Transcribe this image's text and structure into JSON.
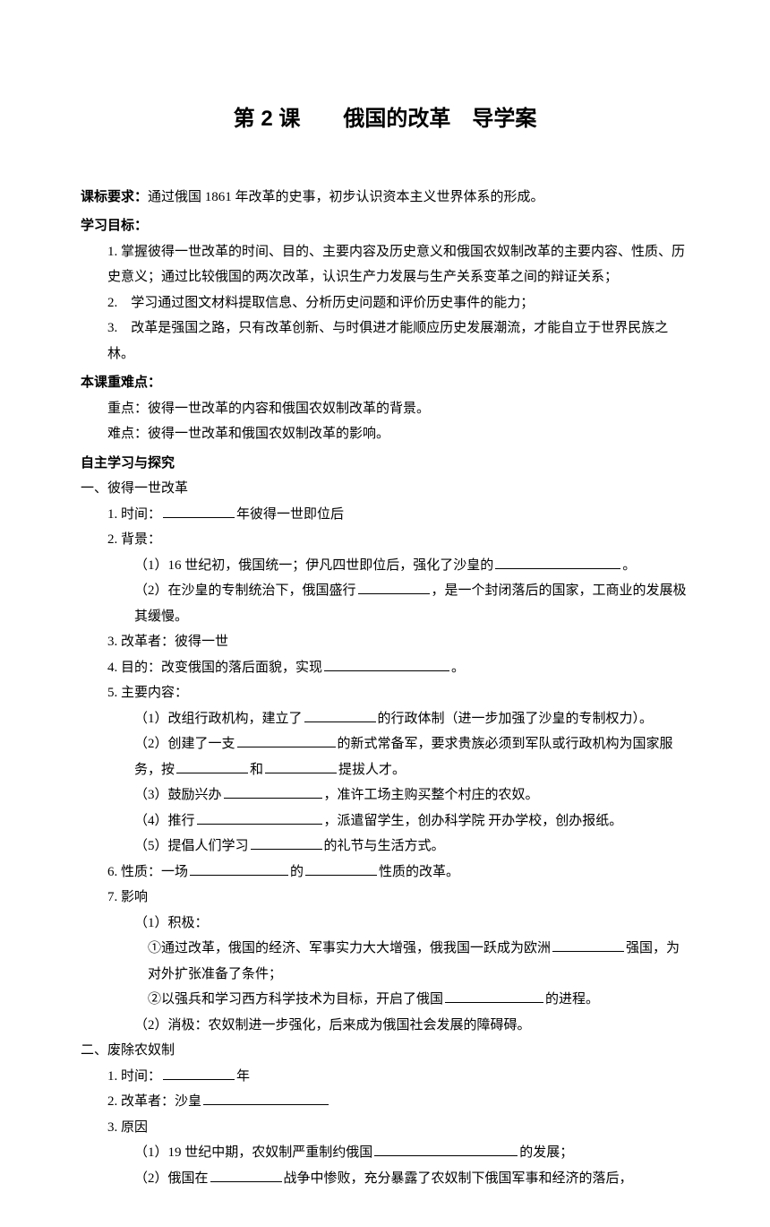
{
  "title": "第 2 课　　俄国的改革　导学案",
  "requirement": {
    "label": "课标要求：",
    "text": "通过俄国 1861 年改革的史事，初步认识资本主义世界体系的形成。"
  },
  "objectives": {
    "label": "学习目标：",
    "items": [
      "1.  掌握彼得一世改革的时间、目的、主要内容及历史意义和俄国农奴制改革的主要内容、性质、历史意义；通过比较俄国的两次改革，认识生产力发展与生产关系变革之间的辩证关系；",
      "2.　学习通过图文材料提取信息、分析历史问题和评价历史事件的能力；",
      "3.　改革是强国之路，只有改革创新、与时俱进才能顺应历史发展潮流，才能自立于世界民族之林。"
    ]
  },
  "keypoints": {
    "label": "本课重难点：",
    "zhong": "重点：彼得一世改革的内容和俄国农奴制改革的背景。",
    "nan": "难点：彼得一世改革和俄国农奴制改革的影响。"
  },
  "study": {
    "label": "自主学习与探究"
  },
  "section1": {
    "header": "一、彼得一世改革",
    "time_label": "1.  时间：",
    "time_suffix": "年彼得一世即位后",
    "bg_label": "2.  背景：",
    "bg1_prefix": "（1）16 世纪初，俄国统一；伊凡四世即位后，强化了沙皇的",
    "bg1_suffix": "。",
    "bg2_prefix": "（2）在沙皇的专制统治下，俄国盛行",
    "bg2_suffix": "，是一个封闭落后的国家，工商业的发展极其缓慢。",
    "reformer": "3.  改革者：彼得一世",
    "purpose_prefix": "4.  目的：改变俄国的落后面貌，实现",
    "purpose_suffix": "。",
    "content_label": "5.  主要内容：",
    "c1_prefix": "（1）改组行政机构，建立了",
    "c1_suffix": "的行政体制（进一步加强了沙皇的专制权力）。",
    "c2_prefix": "（2）创建了一支",
    "c2_mid": "的新式常备军，要求贵族必须到军队或行政机构为国家服务，按",
    "c2_and": "和",
    "c2_suffix": "提拔人才。",
    "c3_prefix": "（3）鼓励兴办",
    "c3_suffix": "，准许工场主购买整个村庄的农奴。",
    "c4_prefix": "（4）推行",
    "c4_suffix": "，派遣留学生，创办科学院  开办学校，创办报纸。",
    "c5_prefix": "（5）提倡人们学习",
    "c5_suffix": "的礼节与生活方式。",
    "nature_prefix": "6.  性质：一场",
    "nature_mid": "的",
    "nature_suffix": "性质的改革。",
    "effect_label": "7.  影响",
    "effect_pos_label": "（1）积极：",
    "effect_pos1_prefix": "①通过改革，俄国的经济、军事实力大大增强，俄我国一跃成为欧洲",
    "effect_pos1_suffix": "强国，为对外扩张准备了条件；",
    "effect_pos2_prefix": "②以强兵和学习西方科学技术为目标，开启了俄国",
    "effect_pos2_suffix": "的进程。",
    "effect_neg": "（2）消极：农奴制进一步强化，后来成为俄国社会发展的障碍碍。"
  },
  "section2": {
    "header": "二、废除农奴制",
    "time_label": "1.  时间：",
    "time_suffix": "年",
    "reformer_prefix": "2.  改革者：沙皇",
    "reason_label": "3.  原因",
    "r1_prefix": "（1）19 世纪中期，农奴制严重制约俄国",
    "r1_suffix": "的发展；",
    "r2_prefix": "（2）俄国在",
    "r2_suffix": "战争中惨败，充分暴露了农奴制下俄国军事和经济的落后，"
  },
  "colors": {
    "text": "#000000",
    "background": "#ffffff",
    "underline": "#000000"
  },
  "typography": {
    "body_font": "SimSun",
    "heading_font": "SimHei",
    "title_fontsize": 24,
    "body_fontsize": 15,
    "line_height": 1.9
  }
}
